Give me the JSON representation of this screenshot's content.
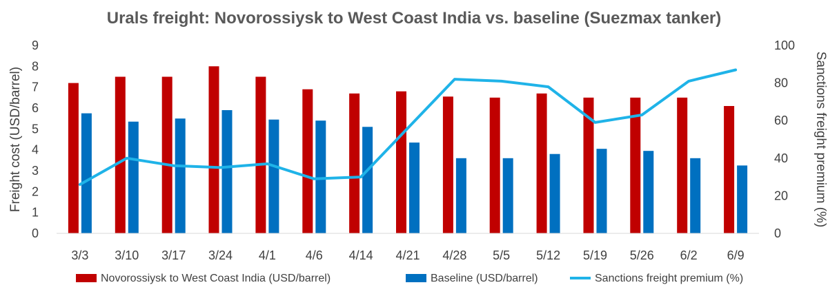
{
  "chart_data": {
    "type": "bar",
    "title": "Urals freight: Novorossiysk to West Coast India vs. baseline (Suezmax tanker)",
    "categories": [
      "3/3",
      "3/10",
      "3/17",
      "3/24",
      "4/1",
      "4/6",
      "4/14",
      "4/21",
      "4/28",
      "5/5",
      "5/12",
      "5/19",
      "5/26",
      "6/2",
      "6/9"
    ],
    "ylabel": "Freight cost (USD/barrel)",
    "y2label": "Sanctions freight premium (%)",
    "ylim": [
      0,
      9
    ],
    "y2lim": [
      0,
      100
    ],
    "yticks": [
      "0",
      "1",
      "2",
      "3",
      "4",
      "5",
      "6",
      "7",
      "8",
      "9"
    ],
    "y2ticks": [
      "0",
      "20",
      "40",
      "60",
      "80",
      "100"
    ],
    "grid": false,
    "legend_position": "bottom",
    "series": [
      {
        "name": "Novorossiysk to West Coast India (USD/barrel)",
        "type": "bar",
        "axis": "left",
        "color": "#C00000",
        "values": [
          7.2,
          7.5,
          7.5,
          8.0,
          7.5,
          6.9,
          6.7,
          6.8,
          6.55,
          6.5,
          6.7,
          6.5,
          6.5,
          6.5,
          6.1
        ]
      },
      {
        "name": "Baseline (USD/barrel)",
        "type": "bar",
        "axis": "left",
        "color": "#0070C0",
        "values": [
          5.75,
          5.35,
          5.5,
          5.9,
          5.45,
          5.4,
          5.1,
          4.35,
          3.6,
          3.6,
          3.8,
          4.05,
          3.95,
          3.6,
          3.25
        ]
      },
      {
        "name": "Sanctions freight premium (%)",
        "type": "line",
        "axis": "right",
        "color": "#1FB3E8",
        "values": [
          26,
          40,
          36,
          35,
          37,
          29,
          30,
          56,
          82,
          81,
          78,
          59,
          63,
          81,
          87
        ]
      }
    ]
  }
}
